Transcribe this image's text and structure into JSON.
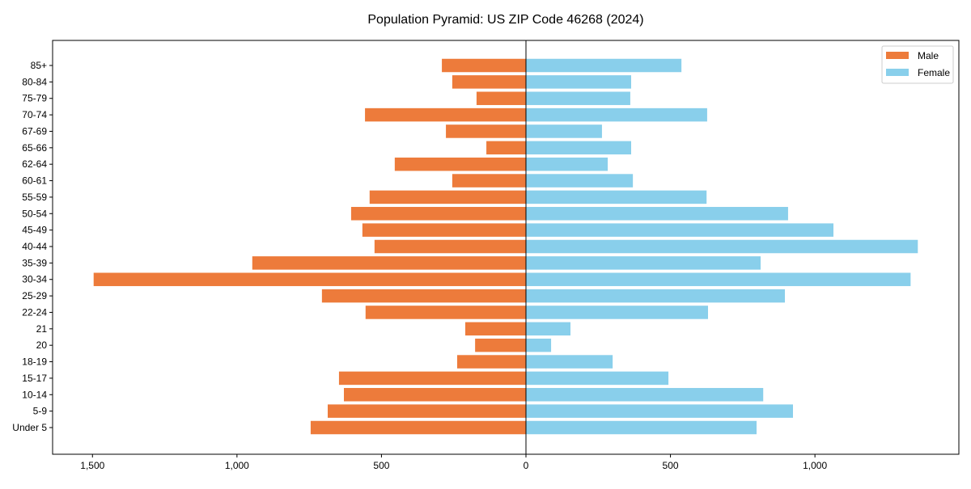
{
  "chart_data": {
    "type": "bar",
    "orientation": "horizontal",
    "title": "Population Pyramid: US ZIP Code 46268 (2024)",
    "xlabel": "",
    "ylabel": "",
    "xlim": [
      -1638,
      1498
    ],
    "xticks": [
      -1500,
      -1000,
      -500,
      0,
      500,
      1000
    ],
    "xtick_labels": [
      "1,500",
      "1,000",
      "500",
      "0",
      "500",
      "1,000"
    ],
    "categories": [
      "85+",
      "80-84",
      "75-79",
      "70-74",
      "67-69",
      "65-66",
      "62-64",
      "60-61",
      "55-59",
      "50-54",
      "45-49",
      "40-44",
      "35-39",
      "30-34",
      "25-29",
      "22-24",
      "21",
      "20",
      "18-19",
      "15-17",
      "10-14",
      "5-9",
      "Under 5"
    ],
    "series": [
      {
        "name": "Male",
        "color": "#ed7b3b",
        "values": [
          291,
          255,
          171,
          557,
          277,
          137,
          454,
          255,
          541,
          605,
          566,
          524,
          947,
          1496,
          706,
          555,
          210,
          176,
          238,
          647,
          630,
          686,
          745
        ]
      },
      {
        "name": "Female",
        "color": "#89cfeb",
        "values": [
          538,
          364,
          361,
          627,
          263,
          364,
          283,
          370,
          625,
          907,
          1064,
          1356,
          812,
          1331,
          896,
          630,
          154,
          87,
          300,
          493,
          821,
          924,
          798
        ]
      }
    ],
    "legend_position": "top-right",
    "grid": false
  }
}
